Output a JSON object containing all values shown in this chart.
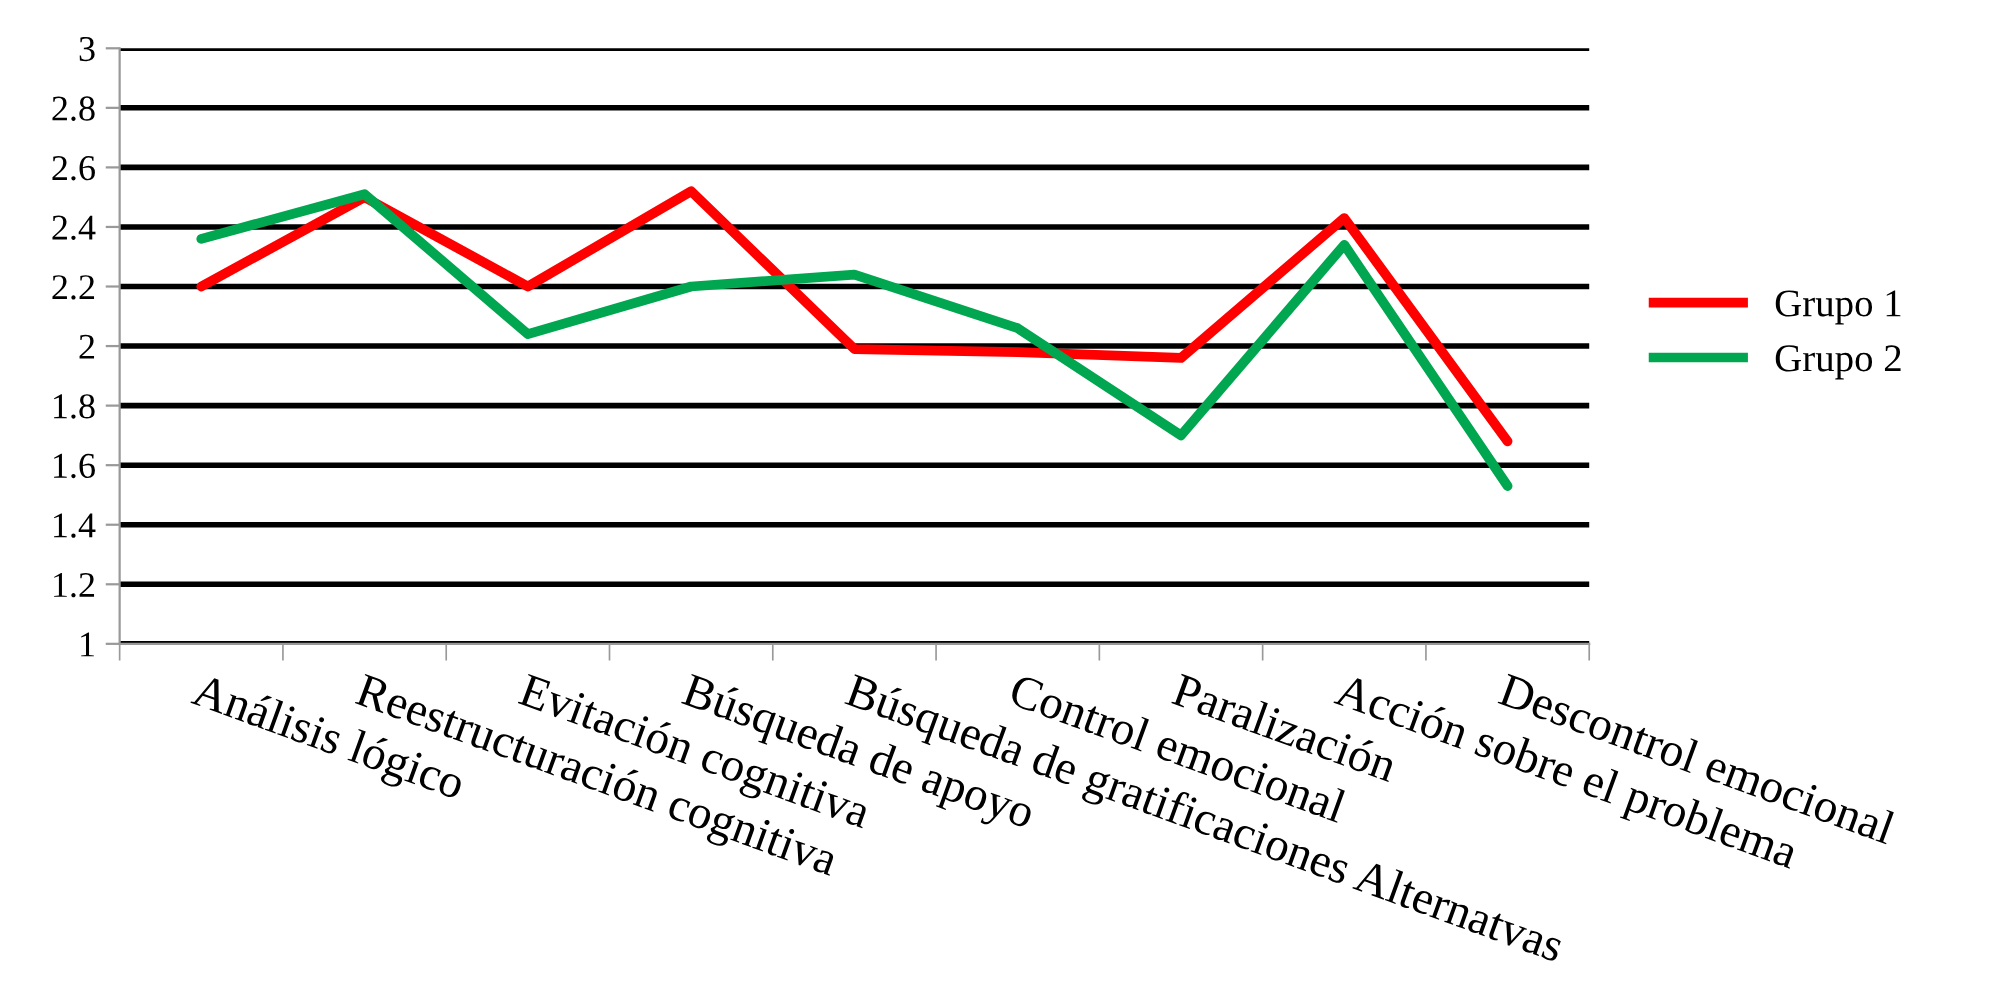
{
  "chart_data": {
    "type": "line",
    "categories": [
      "Análisis lógico",
      "Reestructuración cognitiva",
      "Evitación cognitiva",
      "Búsqueda de apoyo",
      "Búsqueda de gratificaciones Alternatvas",
      "Control emocional",
      "Paralización",
      "Acción sobre el problema",
      "Descontrol emocional"
    ],
    "series": [
      {
        "name": "Grupo 1",
        "color": "#ff0000",
        "values": [
          2.2,
          2.5,
          2.2,
          2.52,
          1.99,
          1.98,
          1.96,
          2.43,
          1.68
        ]
      },
      {
        "name": "Grupo 2",
        "color": "#00a650",
        "values": [
          2.36,
          2.51,
          2.04,
          2.2,
          2.24,
          2.06,
          1.7,
          2.34,
          1.53
        ]
      }
    ],
    "ylim": [
      1,
      3
    ],
    "yticks": [
      1,
      1.2,
      1.4,
      1.6,
      1.8,
      2,
      2.2,
      2.4,
      2.6,
      2.8,
      3
    ],
    "grid": "y",
    "legend": "right",
    "marker": "none",
    "line_style": "solid"
  }
}
